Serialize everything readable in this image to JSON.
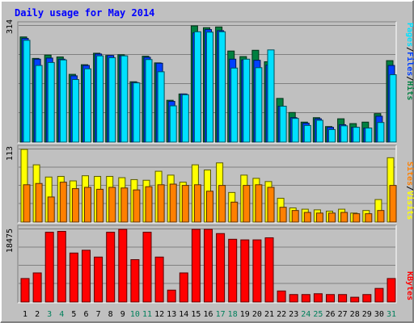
{
  "chart_data": [
    {
      "type": "bar",
      "title": "Daily usage for May 2014",
      "categories": [
        "1",
        "2",
        "3",
        "4",
        "5",
        "6",
        "7",
        "8",
        "9",
        "10",
        "11",
        "12",
        "13",
        "14",
        "15",
        "16",
        "17",
        "18",
        "19",
        "20",
        "21",
        "22",
        "23",
        "24",
        "25",
        "26",
        "27",
        "28",
        "29",
        "30",
        "31"
      ],
      "weekend_days": [
        "3",
        "4",
        "10",
        "11",
        "17",
        "18",
        "24",
        "25",
        "31"
      ],
      "ylim": [
        0,
        314
      ],
      "ytick": "314",
      "right_labels": [
        "Pages",
        "Files",
        "Hits"
      ],
      "separators": [
        "/",
        "/"
      ],
      "series": [
        {
          "name": "Hits",
          "values": [
            284,
            226,
            235,
            230,
            183,
            209,
            240,
            234,
            236,
            163,
            232,
            214,
            113,
            130,
            314,
            309,
            311,
            246,
            231,
            248,
            217,
            118,
            80,
            54,
            66,
            42,
            63,
            50,
            54,
            77,
            220
          ]
        },
        {
          "name": "Files",
          "values": [
            280,
            224,
            227,
            224,
            179,
            207,
            238,
            234,
            233,
            161,
            229,
            213,
            110,
            130,
            295,
            304,
            301,
            224,
            222,
            221,
            208,
            97,
            66,
            51,
            63,
            40,
            47,
            40,
            38,
            70,
            207
          ]
        },
        {
          "name": "Pages",
          "values": [
            275,
            207,
            215,
            222,
            169,
            198,
            233,
            228,
            233,
            160,
            223,
            190,
            98,
            128,
            298,
            297,
            298,
            200,
            224,
            201,
            249,
            97,
            64,
            45,
            59,
            34,
            44,
            40,
            38,
            53,
            182
          ]
        }
      ]
    },
    {
      "type": "bar",
      "categories": [
        "1",
        "2",
        "3",
        "4",
        "5",
        "6",
        "7",
        "8",
        "9",
        "10",
        "11",
        "12",
        "13",
        "14",
        "15",
        "16",
        "17",
        "18",
        "19",
        "20",
        "21",
        "22",
        "23",
        "24",
        "25",
        "26",
        "27",
        "28",
        "29",
        "30",
        "31"
      ],
      "ylim": [
        0,
        113
      ],
      "ytick": "113",
      "right_labels": [
        "Sites",
        "Visits"
      ],
      "separators": [
        "/"
      ],
      "series": [
        {
          "name": "Visits",
          "values": [
            113,
            89,
            70,
            71,
            64,
            72,
            71,
            71,
            69,
            66,
            65,
            79,
            73,
            62,
            89,
            81,
            92,
            46,
            73,
            68,
            63,
            37,
            22,
            20,
            19,
            17,
            20,
            14,
            18,
            35,
            100
          ]
        },
        {
          "name": "Sites",
          "values": [
            58,
            60,
            39,
            62,
            52,
            54,
            51,
            54,
            53,
            50,
            55,
            58,
            59,
            57,
            58,
            48,
            57,
            31,
            57,
            58,
            54,
            23,
            18,
            15,
            14,
            14,
            15,
            13,
            13,
            18,
            57
          ]
        }
      ]
    },
    {
      "type": "bar",
      "categories": [
        "1",
        "2",
        "3",
        "4",
        "5",
        "6",
        "7",
        "8",
        "9",
        "10",
        "11",
        "12",
        "13",
        "14",
        "15",
        "16",
        "17",
        "18",
        "19",
        "20",
        "21",
        "22",
        "23",
        "24",
        "25",
        "26",
        "27",
        "28",
        "29",
        "30",
        "31"
      ],
      "ylim": [
        0,
        18475
      ],
      "ytick": "18475",
      "right_labels": [
        "KBytes"
      ],
      "separators": [],
      "series": [
        {
          "name": "KBytes",
          "values": [
            5972,
            7396,
            17740,
            17960,
            12450,
            13160,
            11427,
            17740,
            18475,
            10770,
            17740,
            11427,
            3024,
            7396,
            18475,
            18475,
            17400,
            15950,
            15795,
            15795,
            16328,
            2808,
            1900,
            1900,
            2104,
            1900,
            1900,
            1212,
            1900,
            3454,
            5972
          ]
        }
      ]
    }
  ],
  "colors": {
    "background": "#c0c0c0",
    "title": "#0000ff",
    "hits": "#008040",
    "files": "#0040ff",
    "pages": "#00e0ff",
    "visits": "#ffff00",
    "sites": "#ff8000",
    "kbytes": "#ff0000",
    "weekday_label": "#000000",
    "weekend_label": "#00805c"
  }
}
